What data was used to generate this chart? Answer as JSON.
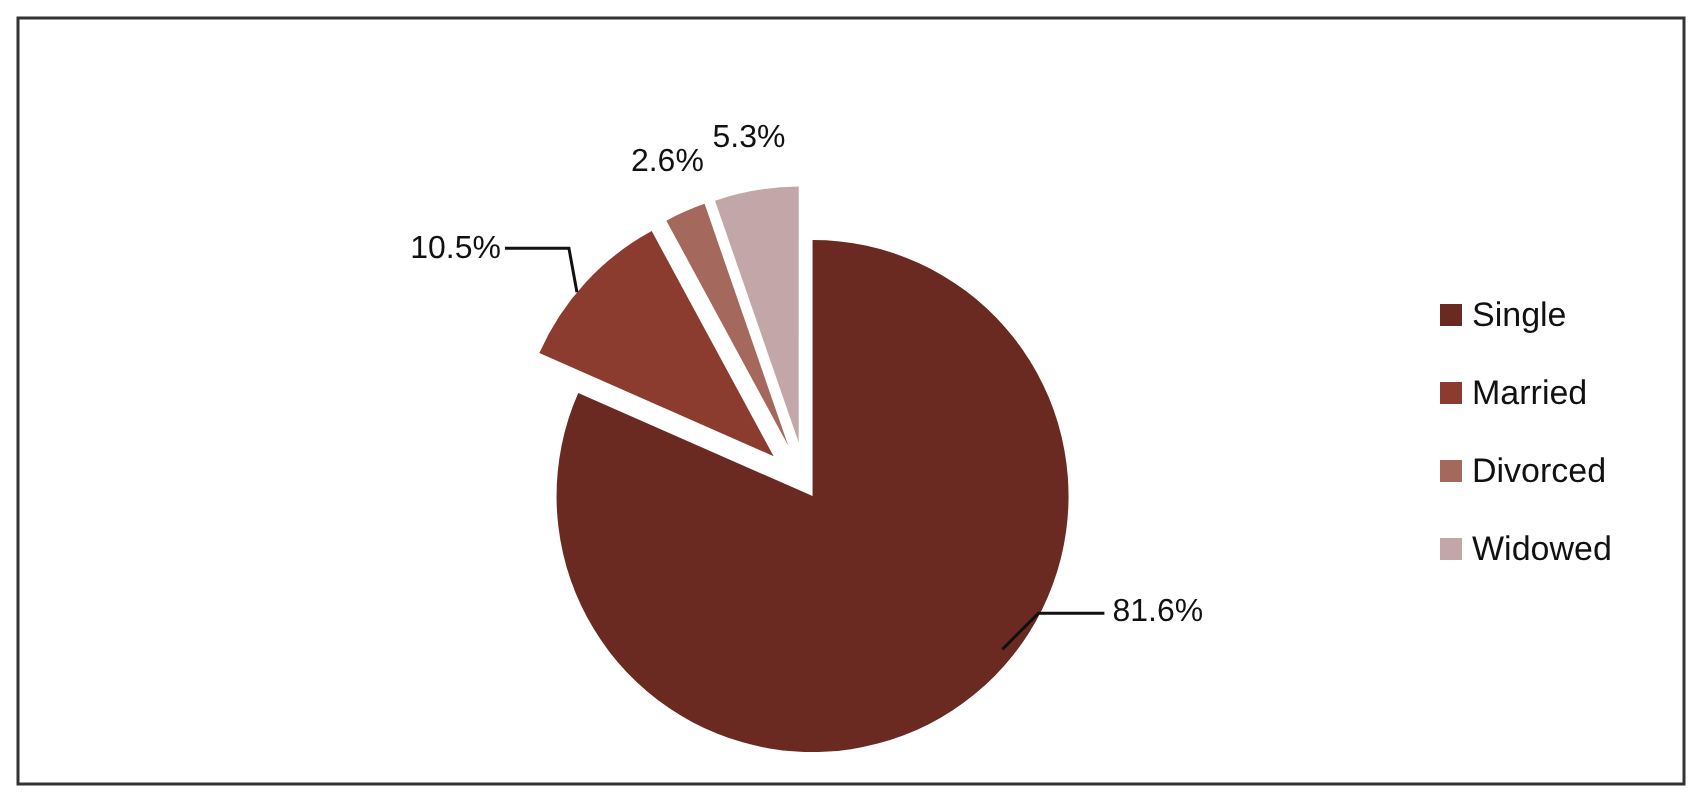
{
  "chart_data": {
    "type": "pie",
    "categories": [
      "Single",
      "Married",
      "Divorced",
      "Widowed"
    ],
    "values": [
      81.6,
      10.5,
      2.6,
      5.3
    ],
    "colors": [
      "#6a2a22",
      "#8c3b2f",
      "#a5685c",
      "#c3a7a8"
    ],
    "value_labels": [
      "81.6%",
      "10.5%",
      "2.6%",
      "5.3%"
    ],
    "legend": "right"
  }
}
